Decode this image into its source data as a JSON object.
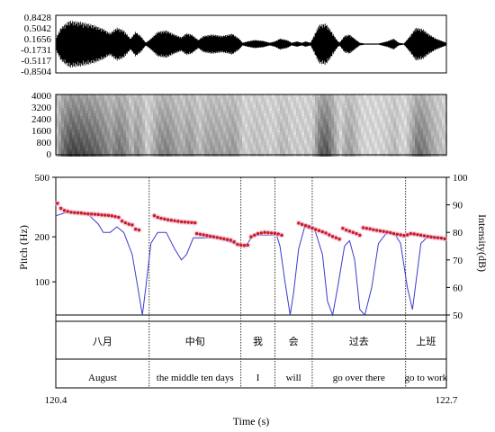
{
  "chart_data": {
    "type": "line",
    "xlabel": "Time (s)",
    "xlim": [
      120.4,
      122.7
    ],
    "x_ticks": [
      "120.4",
      "122.7"
    ],
    "waveform": {
      "yticks": [
        "0.8428",
        "0.5042",
        "0.1656",
        "-0.1731",
        "-0.5117",
        "-0.8504"
      ]
    },
    "spectrogram": {
      "yticks": [
        "4000",
        "3200",
        "2400",
        "1600",
        "800",
        "0"
      ]
    },
    "pitch_panel": {
      "ylabel_left": "Pitch (Hz)",
      "ylabel_right": "Intensity(dB)",
      "left_ticks": [
        "500",
        "200",
        "100"
      ],
      "right_ticks": [
        "100",
        "90",
        "80",
        "70",
        "60",
        "50"
      ],
      "right_ylim": [
        50,
        100
      ],
      "series": [
        {
          "type": "scatter",
          "x": [
            120.41,
            120.43,
            120.45,
            120.47,
            120.49,
            120.51,
            120.53,
            120.55,
            120.57,
            120.59,
            120.61,
            120.63,
            120.65,
            120.67,
            120.69,
            120.71,
            120.73,
            120.75,
            120.77,
            120.79,
            120.81,
            120.83,
            120.85,
            120.87,
            120.89,
            120.98,
            121.0,
            121.02,
            121.04,
            121.06,
            121.08,
            121.1,
            121.12,
            121.14,
            121.16,
            121.18,
            121.2,
            121.22,
            121.23,
            121.25,
            121.27,
            121.29,
            121.31,
            121.33,
            121.35,
            121.37,
            121.39,
            121.41,
            121.43,
            121.45,
            121.47,
            121.49,
            121.51,
            121.53,
            121.55,
            121.57,
            121.59,
            121.61,
            121.63,
            121.65,
            121.67,
            121.69,
            121.71,
            121.73,
            121.83,
            121.85,
            121.87,
            121.89,
            121.91,
            121.93,
            121.95,
            121.97,
            121.99,
            122.01,
            122.03,
            122.05,
            122.07,
            122.09,
            122.11,
            122.13,
            122.15,
            122.17,
            122.19,
            122.21,
            122.23,
            122.25,
            122.27,
            122.29,
            122.31,
            122.33,
            122.35,
            122.37,
            122.39,
            122.41,
            122.43,
            122.45,
            122.47,
            122.49,
            122.51,
            122.53,
            122.55,
            122.57,
            122.59,
            122.61,
            122.63,
            122.65,
            122.67,
            122.69
          ],
          "y": [
            335,
            310,
            300,
            296,
            292,
            290,
            289,
            288,
            286,
            285,
            284,
            283,
            282,
            280,
            279,
            278,
            276,
            273,
            270,
            255,
            248,
            243,
            240,
            225,
            222,
            277,
            270,
            266,
            263,
            260,
            258,
            256,
            254,
            252,
            251,
            250,
            249,
            248,
            210,
            208,
            206,
            204,
            202,
            200,
            198,
            196,
            194,
            192,
            190,
            185,
            178,
            176,
            175,
            176,
            200,
            205,
            210,
            212,
            214,
            213,
            212,
            211,
            209,
            205,
            247,
            242,
            237,
            233,
            228,
            224,
            220,
            216,
            212,
            206,
            201,
            197,
            193,
            228,
            222,
            218,
            214,
            210,
            205,
            230,
            228,
            226,
            223,
            221,
            219,
            217,
            215,
            213,
            210,
            208,
            206,
            204,
            206,
            210,
            209,
            207,
            205,
            203,
            201,
            199,
            198,
            197,
            196,
            194
          ]
        },
        {
          "type": "line",
          "x": [
            120.4,
            120.45,
            120.5,
            120.55,
            120.6,
            120.65,
            120.68,
            120.72,
            120.76,
            120.8,
            120.85,
            120.88,
            120.91,
            120.93,
            120.96,
            121.0,
            121.05,
            121.1,
            121.14,
            121.17,
            121.21,
            121.25,
            121.3,
            121.35,
            121.4,
            121.45,
            121.5,
            121.53,
            121.56,
            121.6,
            121.65,
            121.7,
            121.72,
            121.75,
            121.78,
            121.8,
            121.83,
            121.87,
            121.92,
            121.97,
            122.0,
            122.03,
            122.06,
            122.1,
            122.13,
            122.16,
            122.19,
            122.22,
            122.26,
            122.3,
            122.35,
            122.4,
            122.43,
            122.47,
            122.5,
            122.55,
            122.6,
            122.65,
            122.7
          ],
          "y": [
            86,
            87,
            87.5,
            87.5,
            86,
            83,
            80,
            80,
            82,
            80,
            72,
            61,
            50,
            60,
            76,
            80,
            80,
            74,
            70,
            72,
            78,
            78,
            78,
            78,
            77,
            76,
            75,
            76,
            79,
            79,
            79,
            79,
            75,
            62,
            50,
            58,
            74,
            83,
            82,
            72,
            55,
            50,
            60,
            75,
            77,
            70,
            52,
            50,
            60,
            76,
            80,
            79,
            76,
            60,
            52,
            76,
            79,
            78,
            78
          ]
        }
      ]
    },
    "segments": [
      {
        "start": 120.4,
        "end": 120.95,
        "han": "八月",
        "gloss": "August"
      },
      {
        "start": 120.95,
        "end": 121.49,
        "han": "中旬",
        "gloss": "the middle ten days"
      },
      {
        "start": 121.49,
        "end": 121.69,
        "han": "我",
        "gloss": "I"
      },
      {
        "start": 121.69,
        "end": 121.91,
        "han": "会",
        "gloss": "will"
      },
      {
        "start": 121.91,
        "end": 122.46,
        "han": "过去",
        "gloss": "go over there"
      },
      {
        "start": 122.46,
        "end": 122.7,
        "han": "上班",
        "gloss": "go to work"
      }
    ],
    "colors": {
      "pitch": "#c81e1e",
      "intensity": "#3a3ad0",
      "highlight": "#f2b8dc"
    }
  }
}
